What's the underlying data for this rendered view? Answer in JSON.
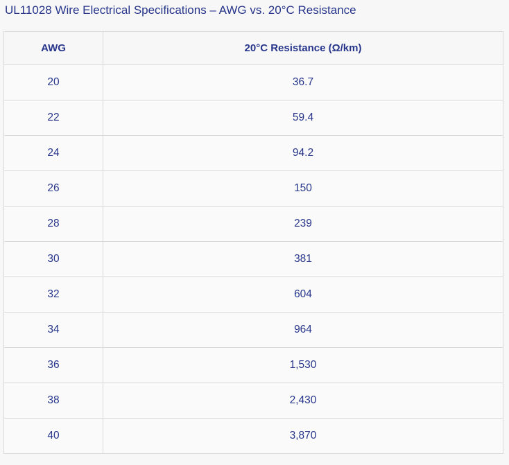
{
  "page": {
    "title": "UL11028 Wire Electrical Specifications – AWG vs. 20°C Resistance"
  },
  "table": {
    "columns": [
      "AWG",
      "20°C Resistance (Ω/km)"
    ],
    "rows": [
      [
        "20",
        "36.7"
      ],
      [
        "22",
        "59.4"
      ],
      [
        "24",
        "94.2"
      ],
      [
        "26",
        "150"
      ],
      [
        "28",
        "239"
      ],
      [
        "30",
        "381"
      ],
      [
        "32",
        "604"
      ],
      [
        "34",
        "964"
      ],
      [
        "36",
        "1,530"
      ],
      [
        "38",
        "2,430"
      ],
      [
        "40",
        "3,870"
      ]
    ]
  },
  "chart_data": {
    "type": "table",
    "title": "UL11028 Wire Electrical Specifications – AWG vs. 20°C Resistance",
    "columns": [
      "AWG",
      "20°C Resistance (Ω/km)"
    ],
    "categories": [
      20,
      22,
      24,
      26,
      28,
      30,
      32,
      34,
      36,
      38,
      40
    ],
    "values": [
      36.7,
      59.4,
      94.2,
      150,
      239,
      381,
      604,
      964,
      1530,
      2430,
      3870
    ],
    "xlabel": "AWG",
    "ylabel": "20°C Resistance (Ω/km)"
  },
  "colors": {
    "text": "#27358b",
    "border": "#d9d9d9",
    "page_bg": "#f7f7f7",
    "cell_bg": "#fafafa",
    "header_bg": "#f7f7f8"
  }
}
